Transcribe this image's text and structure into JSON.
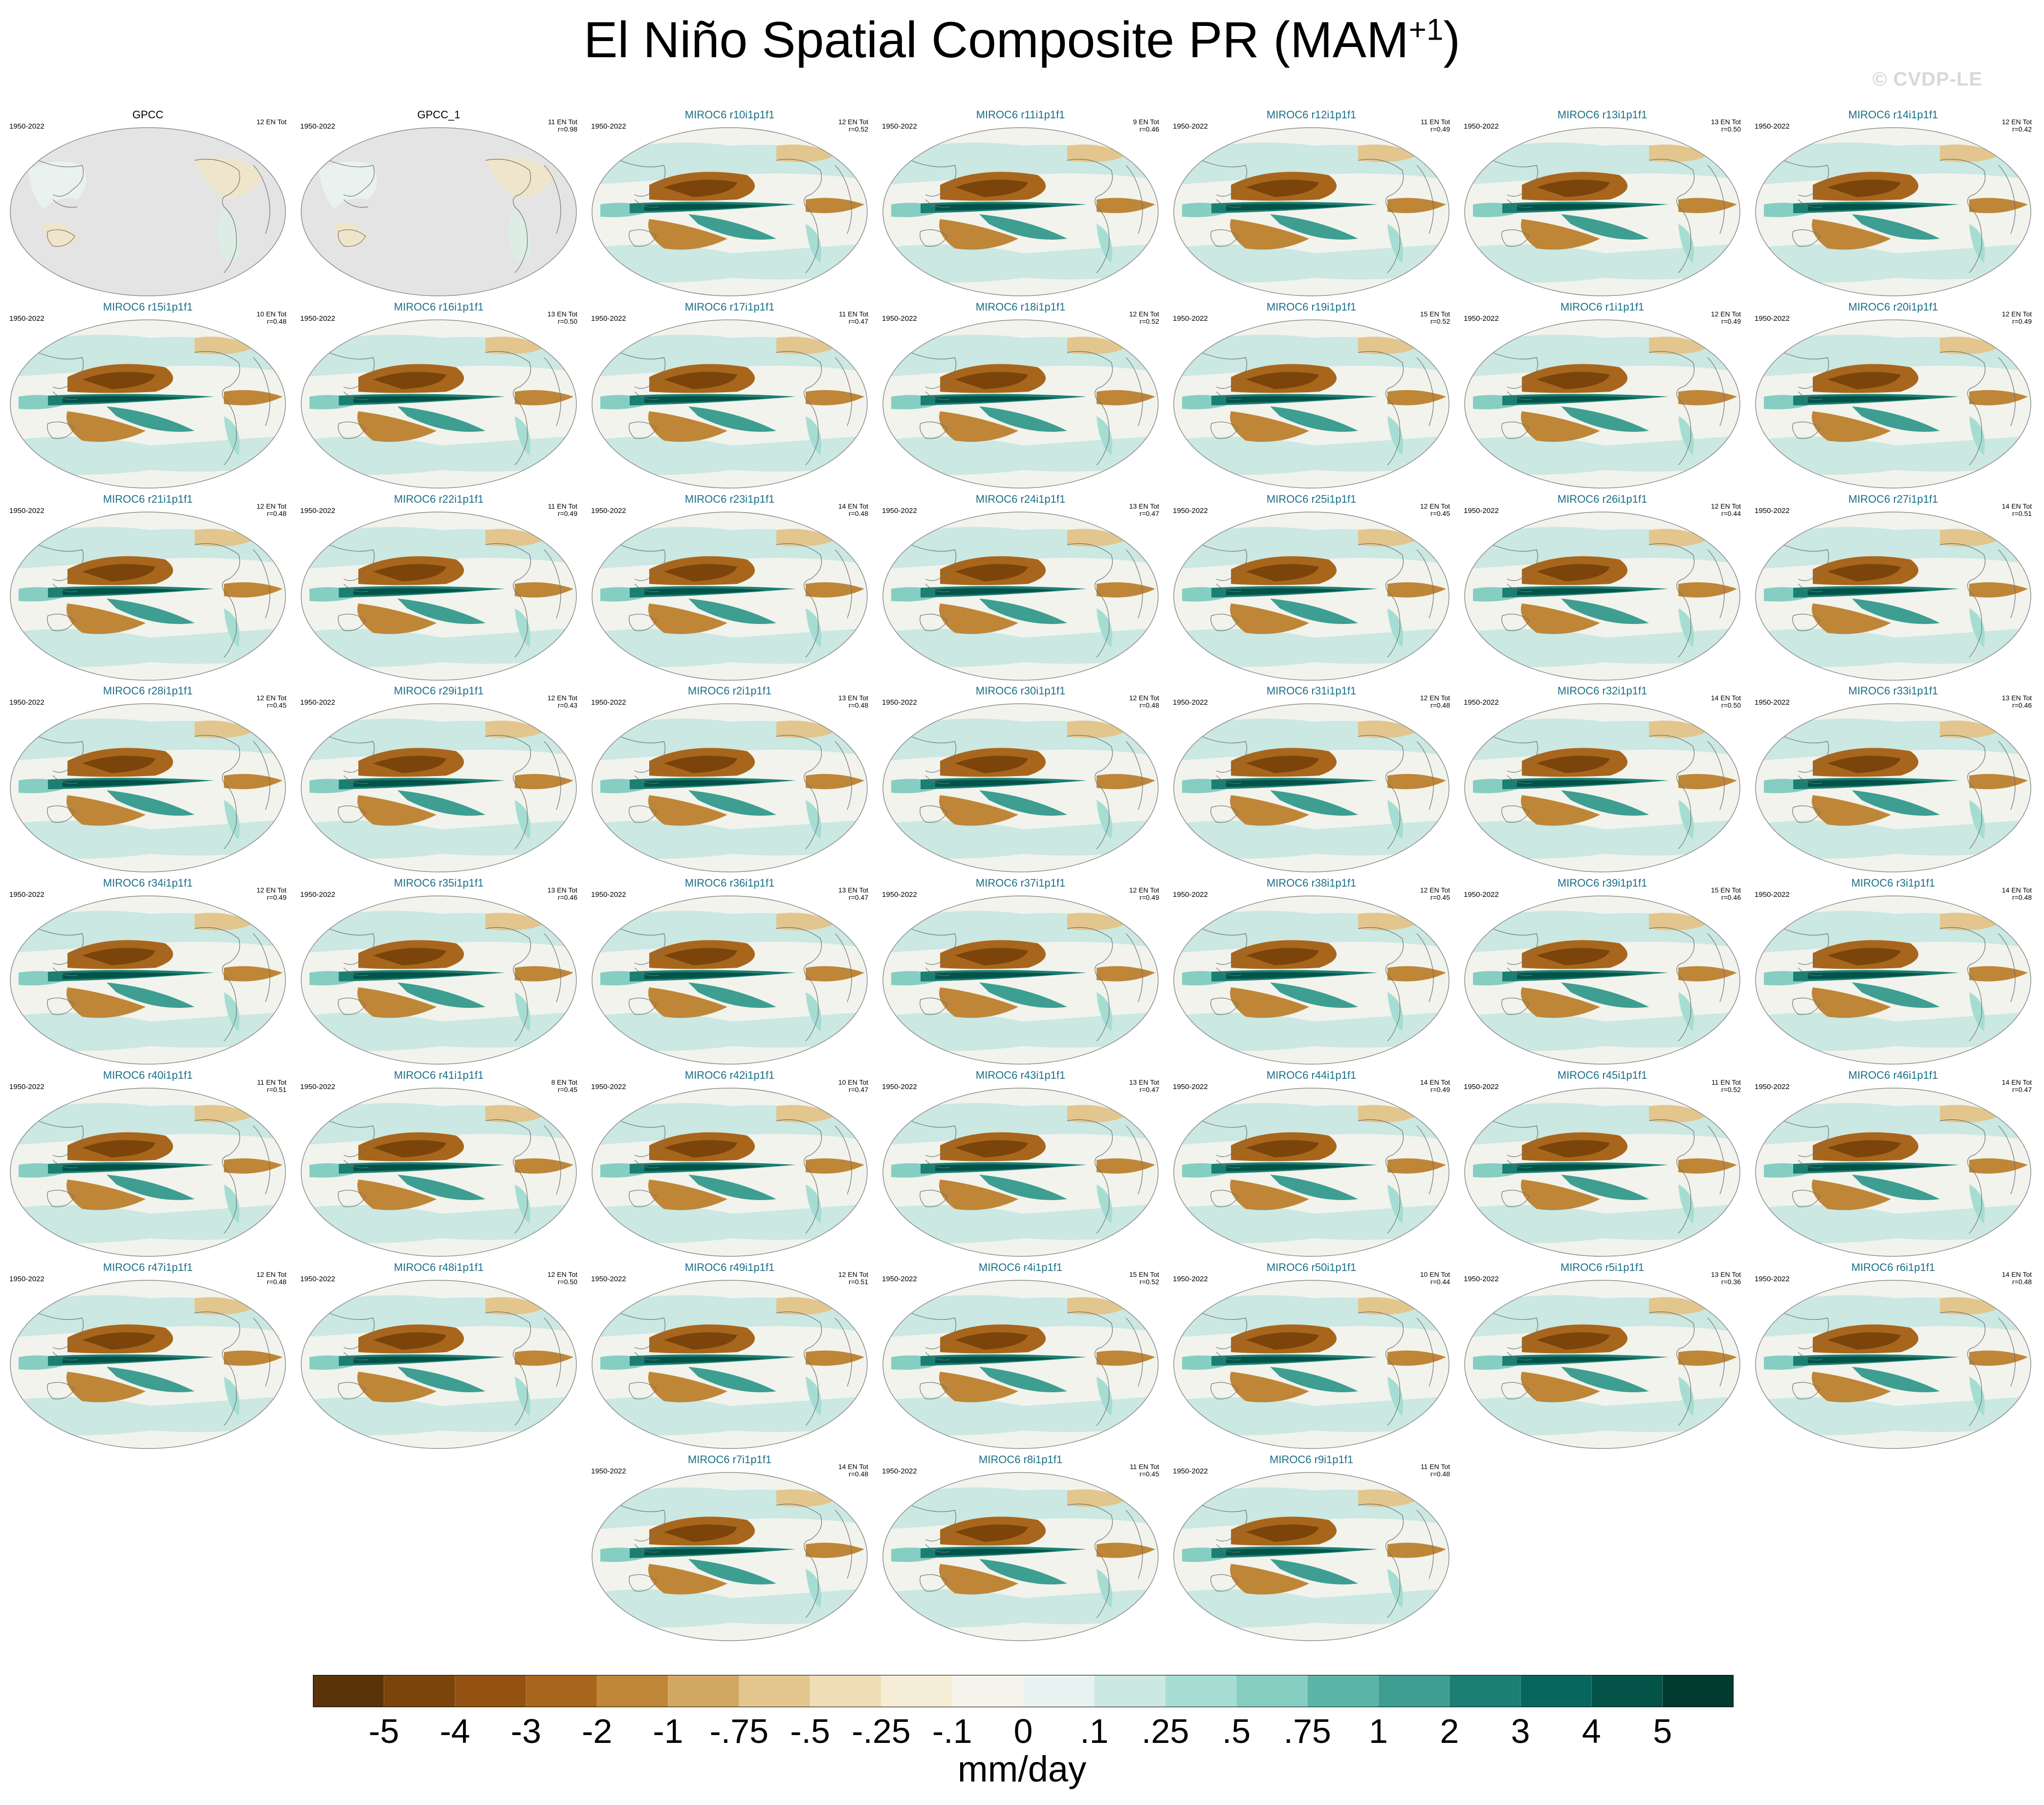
{
  "title": {
    "main": "El Niño Spatial Composite PR (MAM",
    "sup": "+1",
    "close": ")"
  },
  "watermark": "© CVDP-LE",
  "colors": {
    "model_label": "#1a6f86",
    "obs_label": "#000000",
    "land_obs": "#e4e4e4"
  },
  "chart_data": {
    "type": "map-panels",
    "title": "El Niño Spatial Composite PR (MAM+1)",
    "period": "1950-2022",
    "panels": [
      {
        "name": "GPCC",
        "kind": "obs",
        "count": "12 EN Tot",
        "r": ""
      },
      {
        "name": "GPCC_1",
        "kind": "obs",
        "count": "11 EN Tot",
        "r": "r=0.98"
      },
      {
        "name": "MIROC6 r10i1p1f1",
        "kind": "model",
        "count": "12 EN Tot",
        "r": "r=0.52"
      },
      {
        "name": "MIROC6 r11i1p1f1",
        "kind": "model",
        "count": "9 EN Tot",
        "r": "r=0.46"
      },
      {
        "name": "MIROC6 r12i1p1f1",
        "kind": "model",
        "count": "11 EN Tot",
        "r": "r=0.49"
      },
      {
        "name": "MIROC6 r13i1p1f1",
        "kind": "model",
        "count": "13 EN Tot",
        "r": "r=0.50"
      },
      {
        "name": "MIROC6 r14i1p1f1",
        "kind": "model",
        "count": "12 EN Tot",
        "r": "r=0.42"
      },
      {
        "name": "MIROC6 r15i1p1f1",
        "kind": "model",
        "count": "10 EN Tot",
        "r": "r=0.48"
      },
      {
        "name": "MIROC6 r16i1p1f1",
        "kind": "model",
        "count": "13 EN Tot",
        "r": "r=0.50"
      },
      {
        "name": "MIROC6 r17i1p1f1",
        "kind": "model",
        "count": "11 EN Tot",
        "r": "r=0.47"
      },
      {
        "name": "MIROC6 r18i1p1f1",
        "kind": "model",
        "count": "12 EN Tot",
        "r": "r=0.52"
      },
      {
        "name": "MIROC6 r19i1p1f1",
        "kind": "model",
        "count": "15 EN Tot",
        "r": "r=0.52"
      },
      {
        "name": "MIROC6 r1i1p1f1",
        "kind": "model",
        "count": "12 EN Tot",
        "r": "r=0.49"
      },
      {
        "name": "MIROC6 r20i1p1f1",
        "kind": "model",
        "count": "12 EN Tot",
        "r": "r=0.49"
      },
      {
        "name": "MIROC6 r21i1p1f1",
        "kind": "model",
        "count": "12 EN Tot",
        "r": "r=0.48"
      },
      {
        "name": "MIROC6 r22i1p1f1",
        "kind": "model",
        "count": "11 EN Tot",
        "r": "r=0.49"
      },
      {
        "name": "MIROC6 r23i1p1f1",
        "kind": "model",
        "count": "14 EN Tot",
        "r": "r=0.48"
      },
      {
        "name": "MIROC6 r24i1p1f1",
        "kind": "model",
        "count": "13 EN Tot",
        "r": "r=0.47"
      },
      {
        "name": "MIROC6 r25i1p1f1",
        "kind": "model",
        "count": "12 EN Tot",
        "r": "r=0.45"
      },
      {
        "name": "MIROC6 r26i1p1f1",
        "kind": "model",
        "count": "12 EN Tot",
        "r": "r=0.44"
      },
      {
        "name": "MIROC6 r27i1p1f1",
        "kind": "model",
        "count": "14 EN Tot",
        "r": "r=0.51"
      },
      {
        "name": "MIROC6 r28i1p1f1",
        "kind": "model",
        "count": "12 EN Tot",
        "r": "r=0.45"
      },
      {
        "name": "MIROC6 r29i1p1f1",
        "kind": "model",
        "count": "12 EN Tot",
        "r": "r=0.43"
      },
      {
        "name": "MIROC6 r2i1p1f1",
        "kind": "model",
        "count": "13 EN Tot",
        "r": "r=0.48"
      },
      {
        "name": "MIROC6 r30i1p1f1",
        "kind": "model",
        "count": "12 EN Tot",
        "r": "r=0.48"
      },
      {
        "name": "MIROC6 r31i1p1f1",
        "kind": "model",
        "count": "12 EN Tot",
        "r": "r=0.48"
      },
      {
        "name": "MIROC6 r32i1p1f1",
        "kind": "model",
        "count": "14 EN Tot",
        "r": "r=0.50"
      },
      {
        "name": "MIROC6 r33i1p1f1",
        "kind": "model",
        "count": "13 EN Tot",
        "r": "r=0.46"
      },
      {
        "name": "MIROC6 r34i1p1f1",
        "kind": "model",
        "count": "12 EN Tot",
        "r": "r=0.49"
      },
      {
        "name": "MIROC6 r35i1p1f1",
        "kind": "model",
        "count": "13 EN Tot",
        "r": "r=0.46"
      },
      {
        "name": "MIROC6 r36i1p1f1",
        "kind": "model",
        "count": "13 EN Tot",
        "r": "r=0.47"
      },
      {
        "name": "MIROC6 r37i1p1f1",
        "kind": "model",
        "count": "12 EN Tot",
        "r": "r=0.49"
      },
      {
        "name": "MIROC6 r38i1p1f1",
        "kind": "model",
        "count": "12 EN Tot",
        "r": "r=0.45"
      },
      {
        "name": "MIROC6 r39i1p1f1",
        "kind": "model",
        "count": "15 EN Tot",
        "r": "r=0.46"
      },
      {
        "name": "MIROC6 r3i1p1f1",
        "kind": "model",
        "count": "14 EN Tot",
        "r": "r=0.48"
      },
      {
        "name": "MIROC6 r40i1p1f1",
        "kind": "model",
        "count": "11 EN Tot",
        "r": "r=0.51"
      },
      {
        "name": "MIROC6 r41i1p1f1",
        "kind": "model",
        "count": "8 EN Tot",
        "r": "r=0.45"
      },
      {
        "name": "MIROC6 r42i1p1f1",
        "kind": "model",
        "count": "10 EN Tot",
        "r": "r=0.47"
      },
      {
        "name": "MIROC6 r43i1p1f1",
        "kind": "model",
        "count": "13 EN Tot",
        "r": "r=0.47"
      },
      {
        "name": "MIROC6 r44i1p1f1",
        "kind": "model",
        "count": "14 EN Tot",
        "r": "r=0.49"
      },
      {
        "name": "MIROC6 r45i1p1f1",
        "kind": "model",
        "count": "11 EN Tot",
        "r": "r=0.52"
      },
      {
        "name": "MIROC6 r46i1p1f1",
        "kind": "model",
        "count": "14 EN Tot",
        "r": "r=0.47"
      },
      {
        "name": "MIROC6 r47i1p1f1",
        "kind": "model",
        "count": "12 EN Tot",
        "r": "r=0.48"
      },
      {
        "name": "MIROC6 r48i1p1f1",
        "kind": "model",
        "count": "12 EN Tot",
        "r": "r=0.50"
      },
      {
        "name": "MIROC6 r49i1p1f1",
        "kind": "model",
        "count": "12 EN Tot",
        "r": "r=0.51"
      },
      {
        "name": "MIROC6 r4i1p1f1",
        "kind": "model",
        "count": "15 EN Tot",
        "r": "r=0.52"
      },
      {
        "name": "MIROC6 r50i1p1f1",
        "kind": "model",
        "count": "10 EN Tot",
        "r": "r=0.44"
      },
      {
        "name": "MIROC6 r5i1p1f1",
        "kind": "model",
        "count": "13 EN Tot",
        "r": "r=0.36"
      },
      {
        "name": "MIROC6 r6i1p1f1",
        "kind": "model",
        "count": "14 EN Tot",
        "r": "r=0.48"
      },
      {
        "name": "MIROC6 r7i1p1f1",
        "kind": "model",
        "count": "14 EN Tot",
        "r": "r=0.48"
      },
      {
        "name": "MIROC6 r8i1p1f1",
        "kind": "model",
        "count": "11 EN Tot",
        "r": "r=0.45"
      },
      {
        "name": "MIROC6 r9i1p1f1",
        "kind": "model",
        "count": "11 EN Tot",
        "r": "r=0.48"
      }
    ],
    "colorbar": {
      "label": "mm/day",
      "ticks": [
        "-5",
        "-4",
        "-3",
        "-2",
        "-1",
        "-.75",
        "-.5",
        "-.25",
        "-.1",
        "0",
        ".1",
        ".25",
        ".5",
        ".75",
        "1",
        "2",
        "3",
        "4",
        "5"
      ],
      "colors": [
        "#5a3308",
        "#7a440b",
        "#935112",
        "#a8661c",
        "#bf8637",
        "#d2a762",
        "#e2c68d",
        "#eeddb5",
        "#f6edd6",
        "#f5f3ec",
        "#e8f3f1",
        "#cbe8e3",
        "#a6ddd3",
        "#85cec1",
        "#5bb5a6",
        "#3d9e91",
        "#1c7f74",
        "#07675e",
        "#035349",
        "#013a2e"
      ]
    }
  }
}
